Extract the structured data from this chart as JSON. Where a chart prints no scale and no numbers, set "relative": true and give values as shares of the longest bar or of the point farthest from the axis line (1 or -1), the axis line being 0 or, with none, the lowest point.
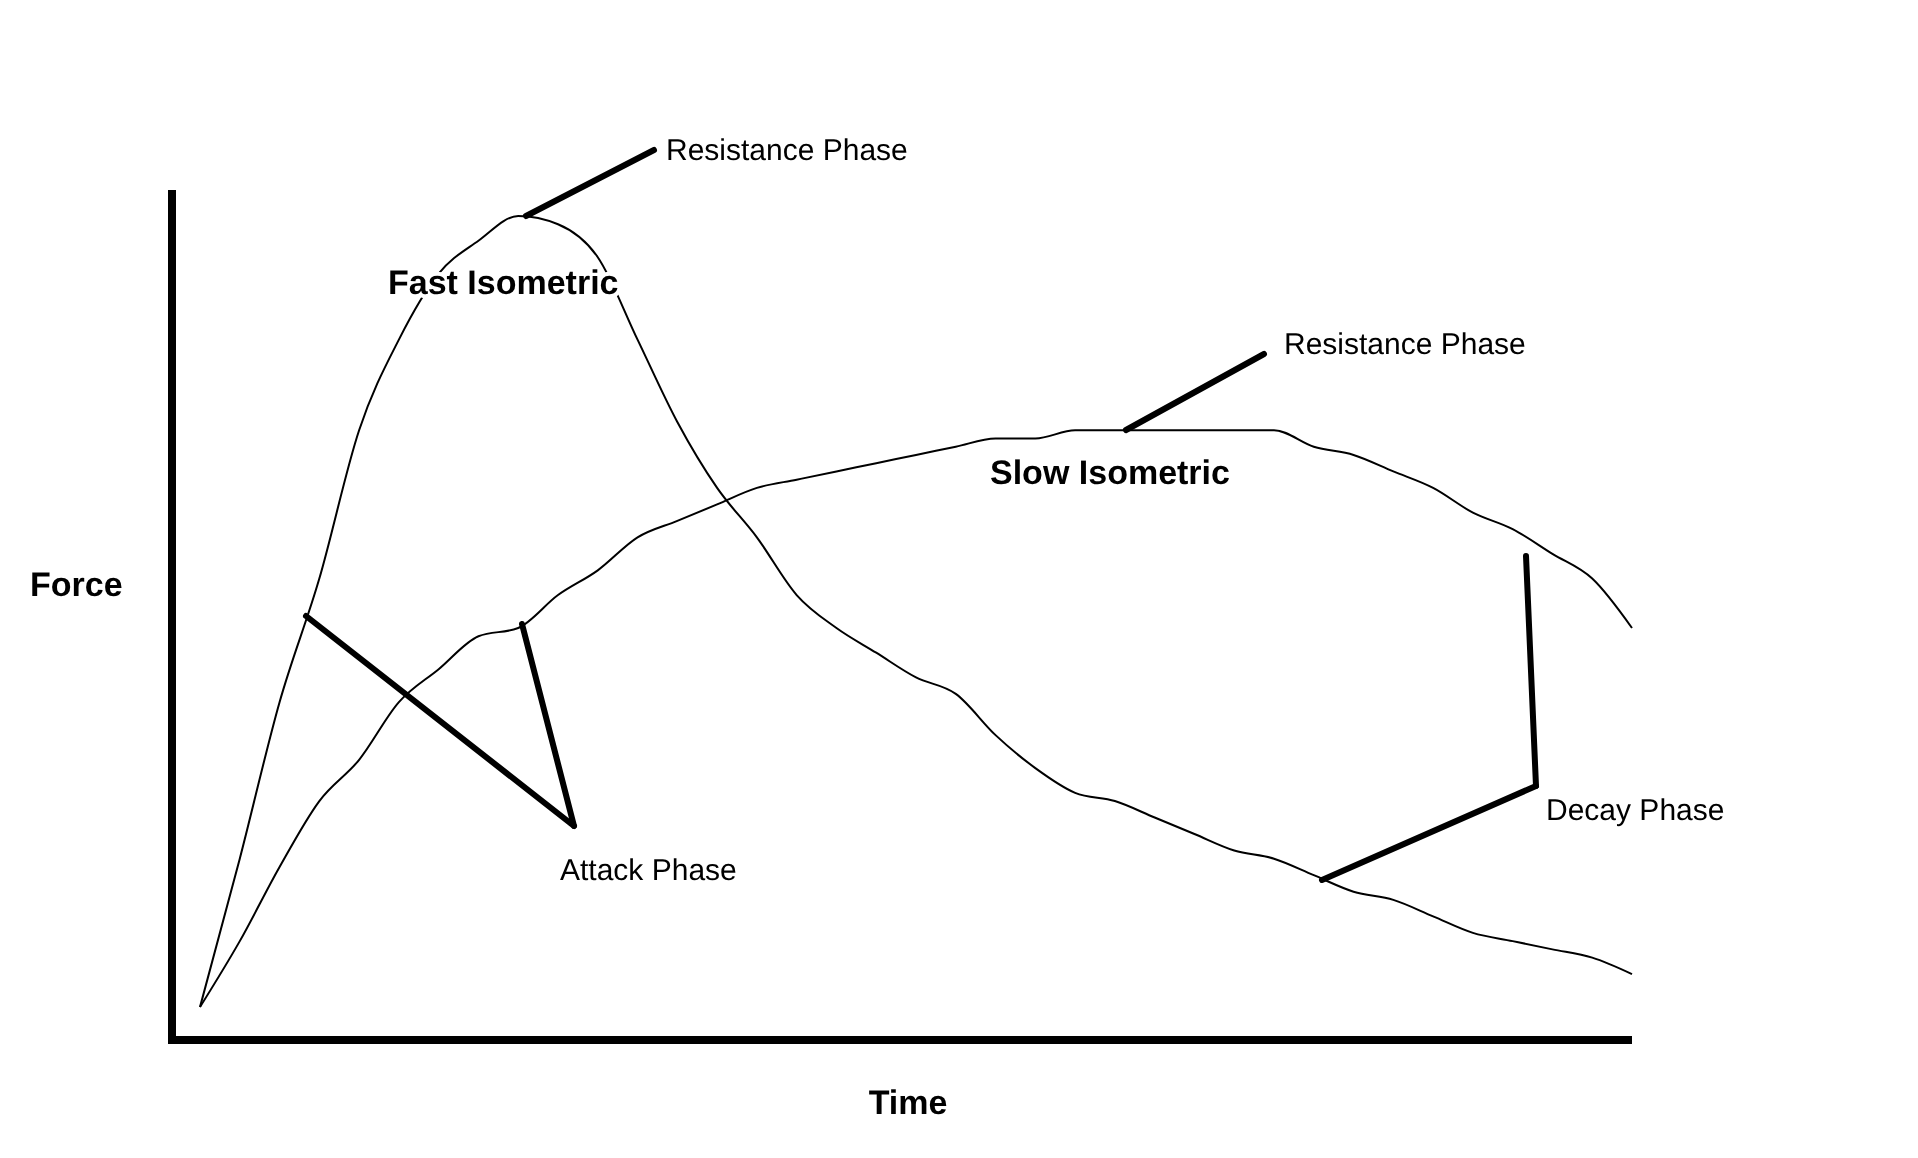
{
  "chart_data": {
    "type": "line",
    "relative": true,
    "xlabel": "Time",
    "ylabel": "Force",
    "categories": [
      null,
      null,
      null,
      null,
      null,
      null,
      null,
      null,
      null,
      null,
      null,
      null,
      null,
      null,
      null,
      null,
      null,
      null,
      null,
      null,
      null,
      null,
      null,
      null,
      null,
      null,
      null,
      null,
      null,
      null,
      null,
      null,
      null,
      null,
      null,
      null,
      null
    ],
    "series": [
      {
        "name": "Fast Isometric",
        "color": "#000000",
        "values": [
          0.04,
          0.22,
          0.41,
          0.56,
          0.74,
          0.85,
          0.93,
          0.97,
          1.0,
          0.99,
          0.95,
          0.85,
          0.75,
          0.67,
          0.61,
          0.54,
          0.5,
          0.47,
          0.44,
          0.42,
          0.37,
          0.33,
          0.3,
          0.29,
          0.27,
          0.25,
          0.23,
          0.22,
          0.2,
          0.18,
          0.17,
          0.15,
          0.13,
          0.12,
          0.11,
          0.1,
          0.08
        ]
      },
      {
        "name": "Slow Isometric",
        "color": "#000000",
        "values": [
          0.04,
          0.12,
          0.21,
          0.29,
          0.34,
          0.41,
          0.45,
          0.49,
          0.5,
          0.54,
          0.57,
          0.61,
          0.63,
          0.65,
          0.67,
          0.68,
          0.69,
          0.7,
          0.71,
          0.72,
          0.73,
          0.73,
          0.74,
          0.74,
          0.74,
          0.74,
          0.74,
          0.74,
          0.72,
          0.71,
          0.69,
          0.67,
          0.64,
          0.62,
          0.59,
          0.56,
          0.5
        ]
      }
    ],
    "annotations": [
      "Resistance Phase",
      "Resistance Phase",
      "Attack Phase",
      "Decay Phase"
    ]
  }
}
